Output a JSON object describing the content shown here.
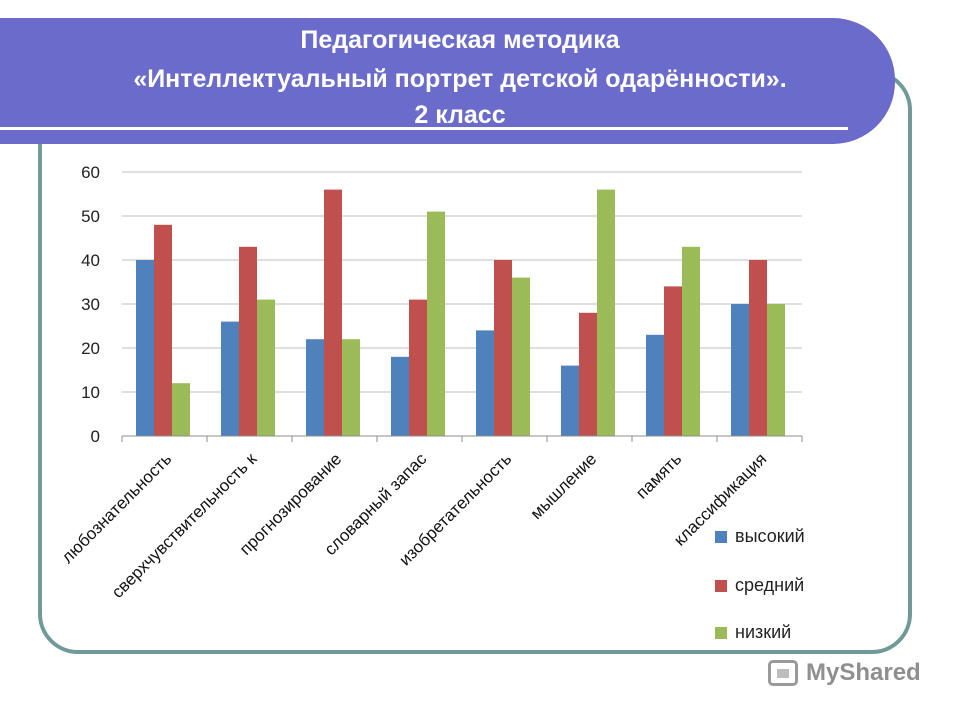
{
  "header": {
    "line1": "Педагогическая методика",
    "line2": "«Интеллектуальный портрет детской одарённости».",
    "line3": "2 класс"
  },
  "colors": {
    "banner": "#6b6bcc",
    "frame": "#6f9a98",
    "series": [
      "#4f81bd",
      "#c0504d",
      "#9bbb59"
    ]
  },
  "watermark": "MyShared",
  "chart_data": {
    "type": "bar",
    "title": "",
    "xlabel": "",
    "ylabel": "",
    "ylim": [
      0,
      60
    ],
    "yticks": [
      0,
      10,
      20,
      30,
      40,
      50,
      60
    ],
    "grid": true,
    "legend_position": "bottom-right",
    "categories": [
      "любознательность",
      "сверхчувствительность к",
      "прогнозирование",
      "словарный запас",
      "изобретательность",
      "мышление",
      "память",
      "классификация"
    ],
    "series": [
      {
        "name": "высокий",
        "values": [
          40,
          26,
          22,
          18,
          24,
          16,
          23,
          30
        ]
      },
      {
        "name": "средний",
        "values": [
          48,
          43,
          56,
          31,
          40,
          28,
          34,
          40
        ]
      },
      {
        "name": "низкий",
        "values": [
          12,
          31,
          22,
          51,
          36,
          56,
          43,
          30
        ]
      }
    ]
  }
}
